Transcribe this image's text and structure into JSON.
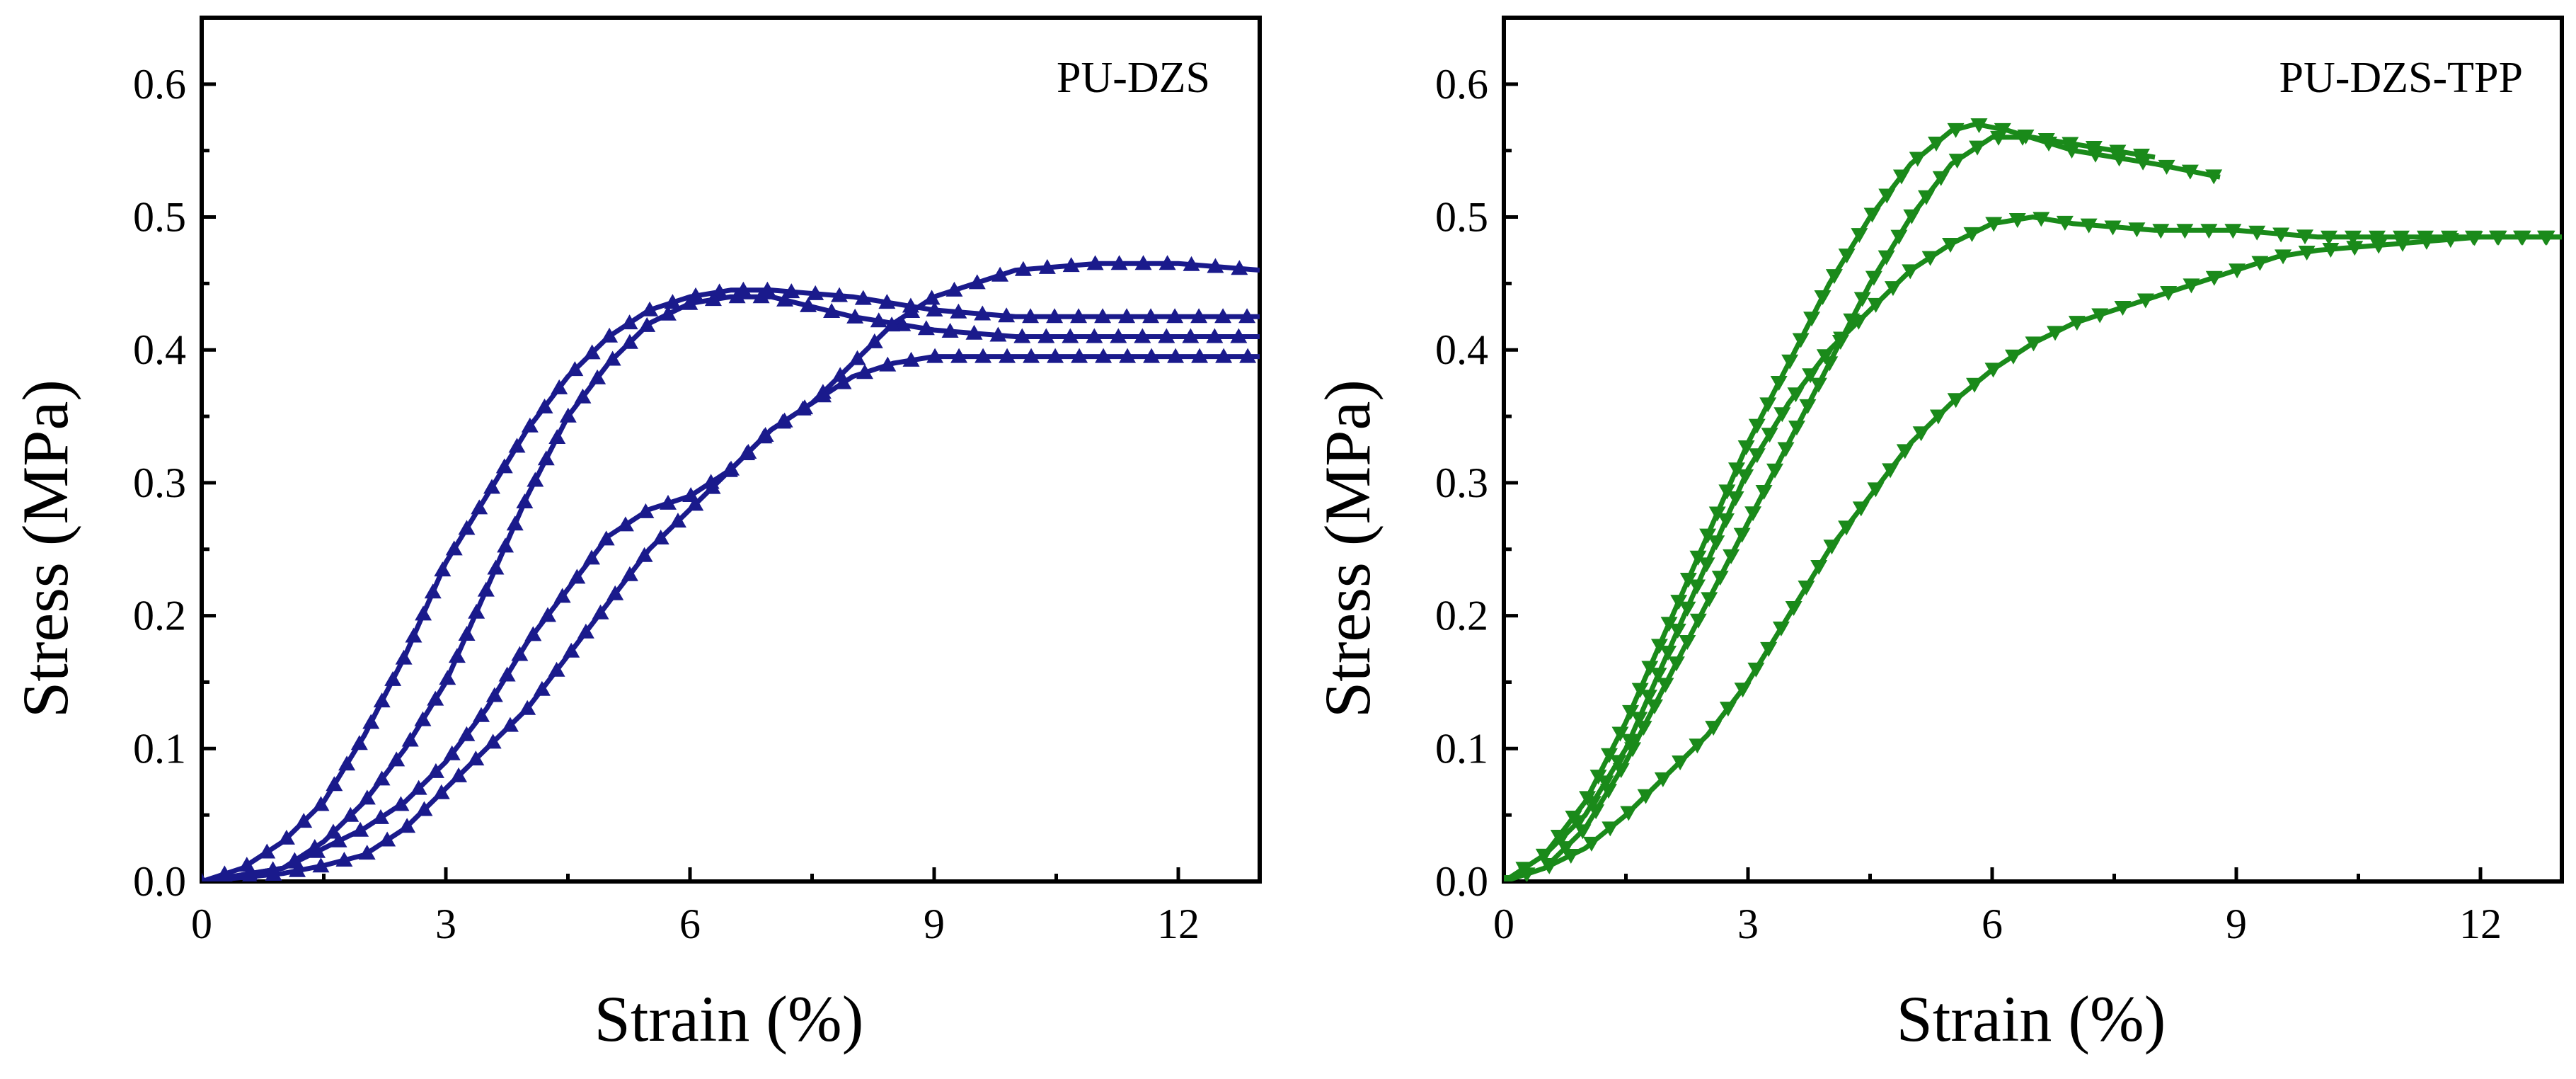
{
  "chart_data": [
    {
      "type": "line",
      "label": "PU-DZS",
      "xlabel": "Strain (%)",
      "ylabel": "Stress (MPa)",
      "xlim": [
        0,
        13
      ],
      "ylim": [
        0,
        0.65
      ],
      "xticks": [
        "0",
        "3",
        "6",
        "9",
        "12"
      ],
      "yticks": [
        "0.0",
        "0.1",
        "0.2",
        "0.3",
        "0.4",
        "0.5",
        "0.6"
      ],
      "color": "#1a1a8c",
      "marker": "triangle-up",
      "series": [
        {
          "x": [
            0,
            0.5,
            1,
            1.5,
            2,
            2.5,
            3,
            3.5,
            4,
            4.5,
            5,
            5.5,
            6,
            6.5,
            7,
            8,
            9,
            10,
            11,
            12,
            13
          ],
          "y": [
            0.0,
            0.01,
            0.03,
            0.06,
            0.11,
            0.17,
            0.24,
            0.29,
            0.34,
            0.38,
            0.41,
            0.43,
            0.44,
            0.445,
            0.445,
            0.44,
            0.43,
            0.425,
            0.425,
            0.425,
            0.425
          ]
        },
        {
          "x": [
            0,
            0.5,
            1,
            1.5,
            2,
            2.5,
            3,
            3.5,
            4,
            4.5,
            5,
            5.5,
            6,
            6.5,
            7,
            8,
            9,
            10,
            11,
            12,
            13
          ],
          "y": [
            0.0,
            0.005,
            0.01,
            0.03,
            0.06,
            0.1,
            0.15,
            0.22,
            0.29,
            0.35,
            0.39,
            0.42,
            0.435,
            0.44,
            0.44,
            0.425,
            0.415,
            0.41,
            0.41,
            0.41,
            0.41
          ]
        },
        {
          "x": [
            0,
            0.5,
            1,
            1.5,
            2,
            2.5,
            3,
            3.5,
            4,
            4.5,
            5,
            5.5,
            6,
            6.5,
            7,
            7.5,
            8,
            8.5,
            9,
            10,
            11,
            12,
            13
          ],
          "y": [
            0.0,
            0.005,
            0.01,
            0.025,
            0.04,
            0.06,
            0.09,
            0.13,
            0.18,
            0.22,
            0.26,
            0.28,
            0.29,
            0.31,
            0.34,
            0.36,
            0.39,
            0.42,
            0.44,
            0.46,
            0.465,
            0.465,
            0.46
          ]
        },
        {
          "x": [
            0,
            0.5,
            1,
            1.5,
            2,
            2.5,
            3,
            3.5,
            4,
            4.5,
            5,
            5.5,
            6,
            6.5,
            7,
            7.5,
            8,
            8.5,
            9,
            10,
            11,
            12,
            13
          ],
          "y": [
            0.0,
            0.003,
            0.006,
            0.012,
            0.02,
            0.04,
            0.07,
            0.1,
            0.13,
            0.17,
            0.21,
            0.25,
            0.28,
            0.31,
            0.34,
            0.36,
            0.38,
            0.39,
            0.395,
            0.395,
            0.395,
            0.395,
            0.395
          ]
        }
      ]
    },
    {
      "type": "line",
      "label": "PU-DZS-TPP",
      "xlabel": "Strain (%)",
      "ylabel": "Stress (MPa)",
      "xlim": [
        0,
        13
      ],
      "ylim": [
        0,
        0.65
      ],
      "xticks": [
        "0",
        "3",
        "6",
        "9",
        "12"
      ],
      "yticks": [
        "0.0",
        "0.1",
        "0.2",
        "0.3",
        "0.4",
        "0.5",
        "0.6"
      ],
      "color": "#1a8a1a",
      "marker": "triangle-down",
      "series": [
        {
          "x": [
            0,
            0.5,
            1,
            1.5,
            2,
            2.5,
            3,
            3.5,
            4,
            4.5,
            5,
            5.5,
            5.8,
            6.2,
            7,
            8,
            8.8
          ],
          "y": [
            0.0,
            0.02,
            0.06,
            0.12,
            0.19,
            0.26,
            0.33,
            0.39,
            0.45,
            0.5,
            0.54,
            0.565,
            0.57,
            0.565,
            0.55,
            0.54,
            0.53
          ]
        },
        {
          "x": [
            0,
            0.5,
            1,
            1.5,
            2,
            2.5,
            3,
            3.5,
            4,
            4.5,
            5,
            5.5,
            6,
            6.5,
            7,
            7.5,
            8
          ],
          "y": [
            0.0,
            0.01,
            0.04,
            0.09,
            0.15,
            0.21,
            0.27,
            0.33,
            0.39,
            0.45,
            0.5,
            0.54,
            0.56,
            0.56,
            0.555,
            0.55,
            0.545
          ]
        },
        {
          "x": [
            0,
            0.5,
            1,
            1.5,
            2,
            2.5,
            3,
            3.5,
            4,
            4.5,
            5,
            5.5,
            6,
            6.5,
            7,
            8,
            9,
            10,
            11,
            12,
            13
          ],
          "y": [
            0.0,
            0.02,
            0.05,
            0.1,
            0.17,
            0.24,
            0.31,
            0.36,
            0.4,
            0.43,
            0.46,
            0.48,
            0.495,
            0.5,
            0.495,
            0.49,
            0.49,
            0.485,
            0.485,
            0.485,
            0.485
          ]
        },
        {
          "x": [
            0,
            0.5,
            1,
            1.5,
            2,
            2.5,
            3,
            3.5,
            4,
            4.5,
            5,
            5.5,
            6,
            6.5,
            7,
            7.5,
            8,
            8.5,
            9,
            9.5,
            10,
            11,
            12,
            13
          ],
          "y": [
            0.0,
            0.01,
            0.025,
            0.05,
            0.08,
            0.11,
            0.15,
            0.2,
            0.25,
            0.29,
            0.33,
            0.36,
            0.385,
            0.405,
            0.42,
            0.43,
            0.44,
            0.45,
            0.46,
            0.47,
            0.475,
            0.48,
            0.485,
            0.485
          ]
        }
      ]
    }
  ]
}
